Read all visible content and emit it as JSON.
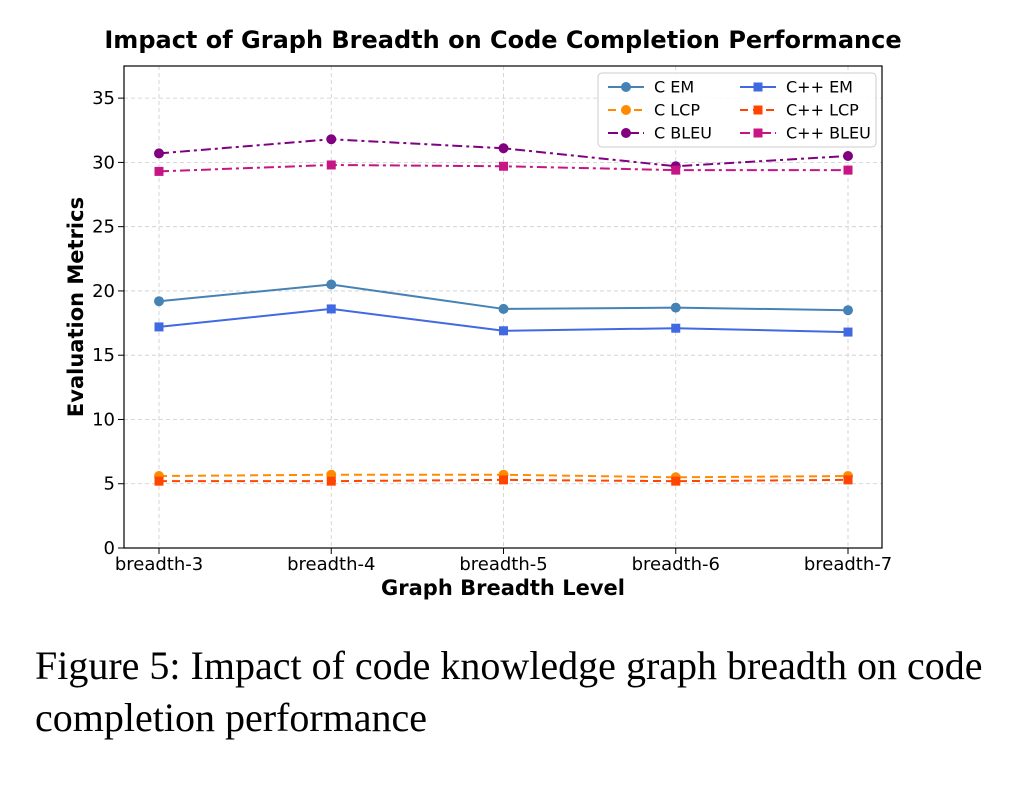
{
  "chart_data": {
    "type": "line",
    "title": "Impact of Graph Breadth on Code Completion Performance",
    "xlabel": "Graph Breadth Level",
    "ylabel": "Evaluation Metrics",
    "categories": [
      "breadth-3",
      "breadth-4",
      "breadth-5",
      "breadth-6",
      "breadth-7"
    ],
    "ylim": [
      0,
      37.5
    ],
    "yticks": [
      0,
      5,
      10,
      15,
      20,
      25,
      30,
      35
    ],
    "grid": true,
    "legend_position": "top-right",
    "series": [
      {
        "name": "C EM",
        "values": [
          19.2,
          20.5,
          18.6,
          18.7,
          18.5
        ],
        "color": "#4682B4",
        "marker": "circle",
        "linestyle": "solid"
      },
      {
        "name": "C LCP",
        "values": [
          5.6,
          5.7,
          5.7,
          5.5,
          5.6
        ],
        "color": "#FF8C00",
        "marker": "circle",
        "linestyle": "dashed"
      },
      {
        "name": "C BLEU",
        "values": [
          30.7,
          31.8,
          31.1,
          29.7,
          30.5
        ],
        "color": "#800080",
        "marker": "circle",
        "linestyle": "dashdot"
      },
      {
        "name": "C++ EM",
        "values": [
          17.2,
          18.6,
          16.9,
          17.1,
          16.8
        ],
        "color": "#4169E1",
        "marker": "square",
        "linestyle": "solid"
      },
      {
        "name": "C++ LCP",
        "values": [
          5.2,
          5.2,
          5.3,
          5.2,
          5.3
        ],
        "color": "#FF4500",
        "marker": "square",
        "linestyle": "dashed"
      },
      {
        "name": "C++ BLEU",
        "values": [
          29.3,
          29.8,
          29.7,
          29.4,
          29.4
        ],
        "color": "#C71585",
        "marker": "square",
        "linestyle": "dashdot"
      }
    ]
  },
  "caption": "Figure 5: Impact of code knowledge graph breadth on code completion performance"
}
